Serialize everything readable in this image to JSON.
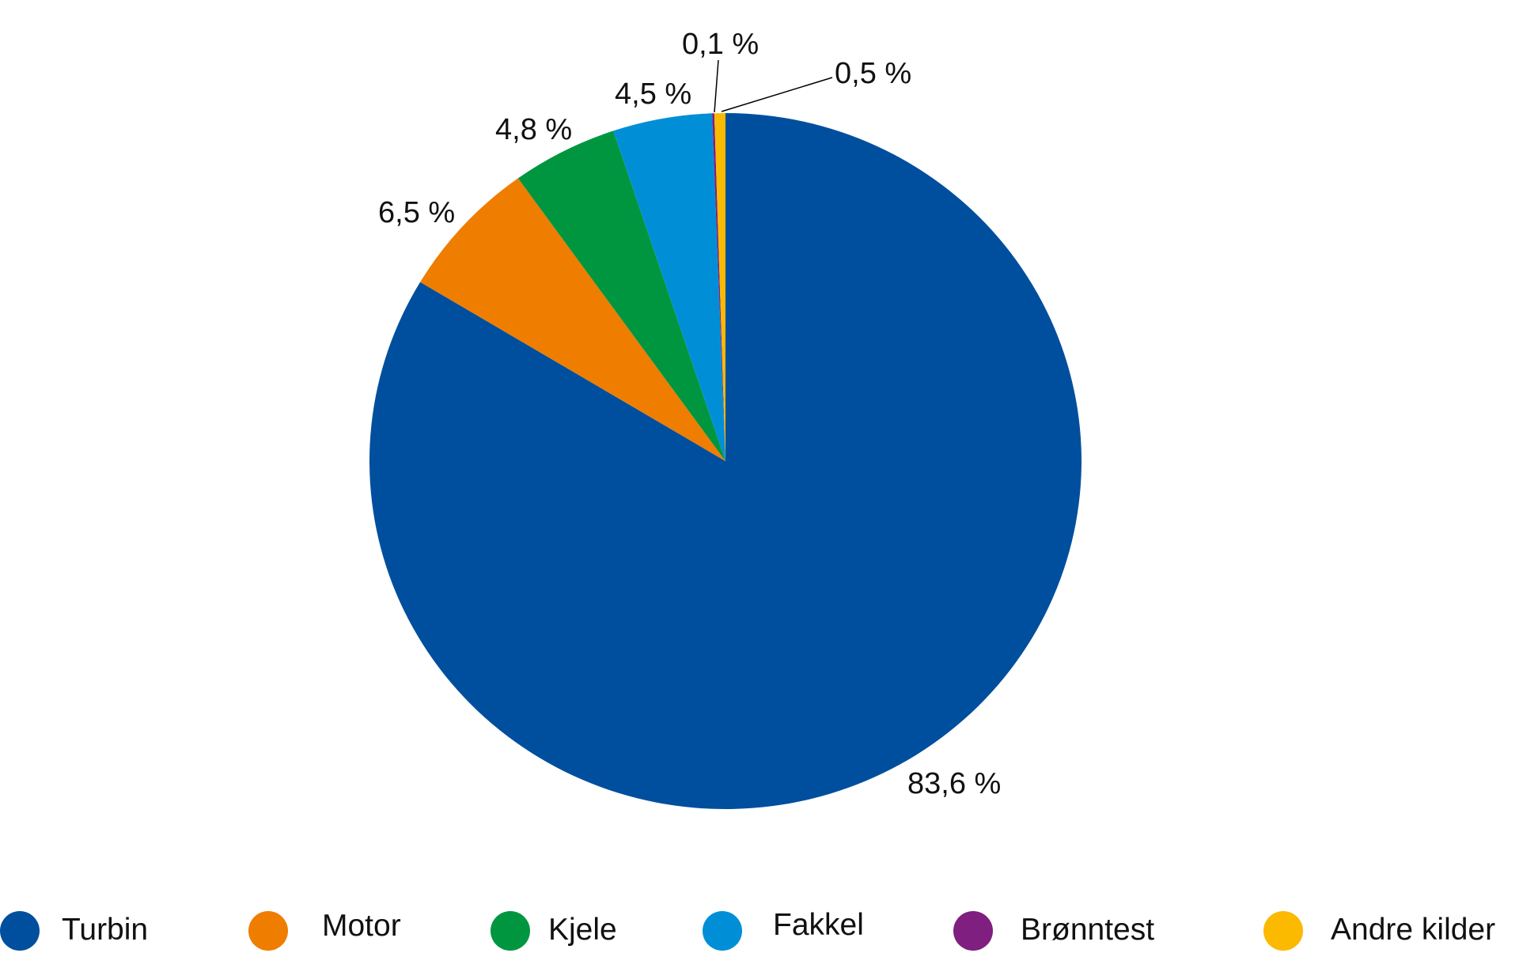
{
  "chart_data": {
    "type": "pie",
    "title": "",
    "start_angle_deg": 0,
    "direction": "clockwise",
    "categories": [
      "Turbin",
      "Andre kilder",
      "Brønntest",
      "Fakkel",
      "Kjele",
      "Motor"
    ],
    "slices": [
      {
        "name": "Turbin",
        "value": 83.6,
        "label": "83,6 %",
        "color": "#004F9E"
      },
      {
        "name": "Motor",
        "value": 6.5,
        "label": "6,5 %",
        "color": "#EF7D00"
      },
      {
        "name": "Kjele",
        "value": 4.8,
        "label": "4,8 %",
        "color": "#009640"
      },
      {
        "name": "Fakkel",
        "value": 4.5,
        "label": "4,5 %",
        "color": "#008FD7"
      },
      {
        "name": "Brønntest",
        "value": 0.1,
        "label": "0,1 %",
        "color": "#7F1F7F"
      },
      {
        "name": "Andre kilder",
        "value": 0.5,
        "label": "0,5 %",
        "color": "#FBB900"
      }
    ],
    "draw_order": [
      "Turbin",
      "Motor",
      "Kjele",
      "Fakkel",
      "Brønntest",
      "Andre kilder"
    ],
    "legend_position": "bottom",
    "unit": "%"
  },
  "legend": [
    {
      "label": "Turbin",
      "color": "#004F9E"
    },
    {
      "label": "Motor",
      "color": "#EF7D00"
    },
    {
      "label": "Kjele",
      "color": "#009640"
    },
    {
      "label": "Fakkel",
      "color": "#008FD7"
    },
    {
      "label": "Brønntest",
      "color": "#7F1F7F"
    },
    {
      "label": "Andre kilder",
      "color": "#FBB900"
    }
  ],
  "labels": {
    "turbin": "83,6 %",
    "motor": "6,5 %",
    "kjele": "4,8 %",
    "fakkel": "4,5 %",
    "bronntest": "0,1 %",
    "andre": "0,5 %"
  }
}
